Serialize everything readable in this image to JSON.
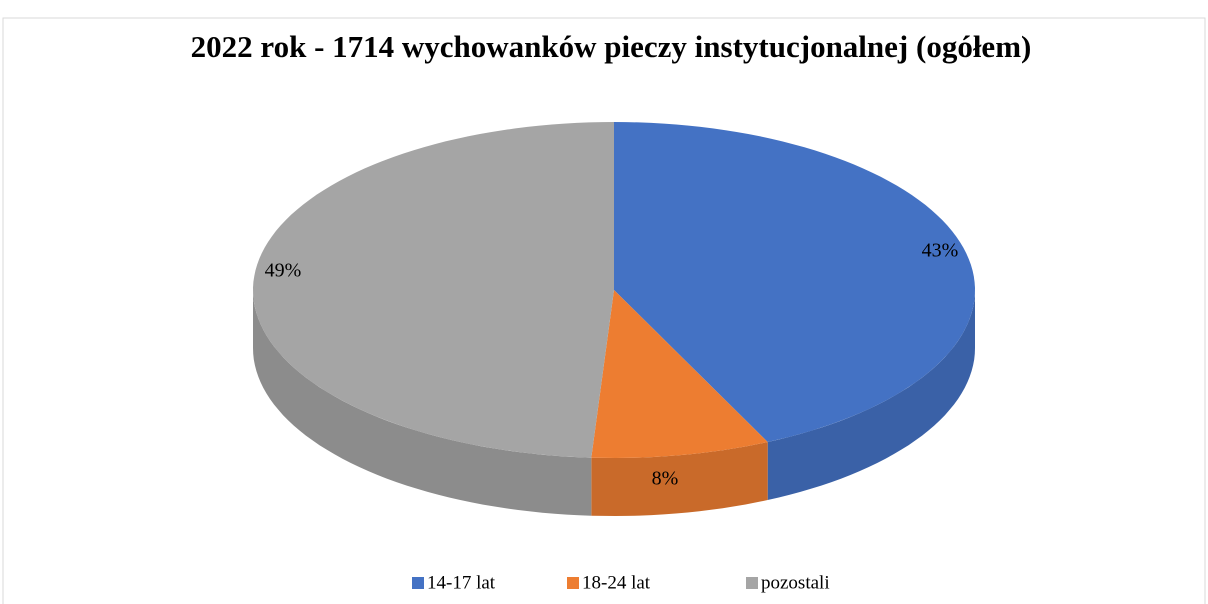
{
  "chart_data": {
    "type": "pie",
    "title": "2022 rok - 1714 wychowanków pieczy instytucjonalnej (ogółem)",
    "categories": [
      "14-17 lat",
      "18-24 lat",
      "pozostali"
    ],
    "values": [
      43,
      8,
      49
    ],
    "value_labels": [
      "43%",
      "8%",
      "49%"
    ],
    "colors": [
      "#4472c4",
      "#ed7d31",
      "#a5a5a5"
    ],
    "legend": "bottom"
  }
}
